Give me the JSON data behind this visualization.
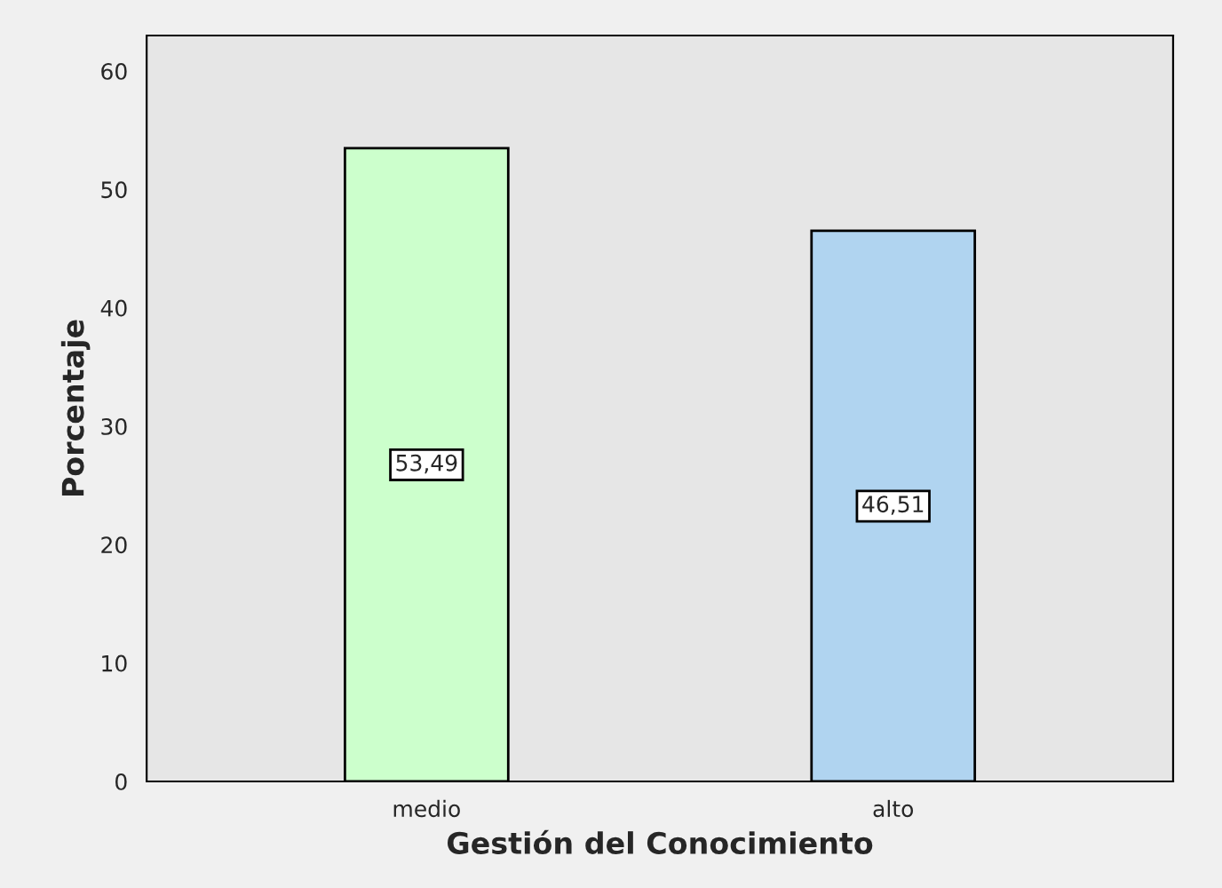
{
  "chart_data": {
    "type": "bar",
    "xlabel": "Gestión del Conocimiento",
    "ylabel": "Porcentaje",
    "categories": [
      "medio",
      "alto"
    ],
    "values": [
      53.49,
      46.51
    ],
    "colors": [
      "#ccffcc",
      "#b0d4f0"
    ],
    "value_labels": [
      "53,49",
      "46,51"
    ],
    "ylim": [
      0,
      63
    ],
    "yticks": [
      0,
      10,
      20,
      30,
      40,
      50,
      60
    ],
    "grid": false
  }
}
